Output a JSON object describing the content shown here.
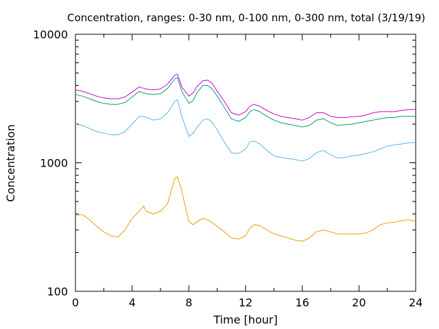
{
  "chart_data": {
    "type": "line",
    "title": "Concentration, ranges: 0-30 nm, 0-100 nm, 0-300 nm, total (3/19/19)",
    "xlabel": "Time [hour]",
    "ylabel": "Concentration",
    "xlim": [
      0,
      24
    ],
    "ylim": [
      100,
      10000
    ],
    "yscale": "log",
    "grid": false,
    "legend": "none",
    "x_ticks": [
      "0",
      "4",
      "8",
      "12",
      "16",
      "20",
      "24"
    ],
    "y_ticks": [
      "100",
      "1000",
      "10000"
    ],
    "x": [
      0,
      0.5,
      1,
      1.5,
      2,
      2.5,
      3,
      3.5,
      4,
      4.5,
      4.8,
      5,
      5.5,
      6,
      6.5,
      7,
      7.2,
      7.5,
      8,
      8.3,
      8.6,
      9,
      9.3,
      9.6,
      10,
      10.5,
      11,
      11.5,
      12,
      12.3,
      12.6,
      13,
      13.5,
      14,
      14.5,
      15,
      15.5,
      16,
      16.5,
      17,
      17.5,
      18,
      18.5,
      19,
      19.5,
      20,
      20.5,
      21,
      21.5,
      22,
      22.5,
      23,
      23.5,
      24
    ],
    "series": [
      {
        "color": "#cc00cc",
        "values": [
          3700,
          3600,
          3450,
          3300,
          3200,
          3150,
          3150,
          3250,
          3550,
          3900,
          3800,
          3750,
          3700,
          3750,
          4100,
          4800,
          4900,
          3900,
          3300,
          3500,
          3950,
          4350,
          4400,
          4200,
          3600,
          3000,
          2450,
          2350,
          2500,
          2750,
          2850,
          2750,
          2550,
          2400,
          2300,
          2250,
          2200,
          2150,
          2250,
          2450,
          2450,
          2300,
          2250,
          2250,
          2280,
          2300,
          2350,
          2450,
          2500,
          2500,
          2500,
          2550,
          2600,
          2600
        ]
      },
      {
        "color": "#009e73",
        "values": [
          3400,
          3300,
          3150,
          3000,
          2900,
          2850,
          2850,
          2950,
          3250,
          3600,
          3500,
          3450,
          3400,
          3450,
          3800,
          4500,
          4600,
          3600,
          2900,
          3050,
          3550,
          4000,
          4000,
          3800,
          3300,
          2700,
          2200,
          2100,
          2250,
          2500,
          2600,
          2500,
          2300,
          2150,
          2050,
          2000,
          1950,
          1900,
          1950,
          2150,
          2200,
          2050,
          1950,
          1980,
          2000,
          2050,
          2100,
          2150,
          2200,
          2250,
          2250,
          2300,
          2300,
          2300
        ]
      },
      {
        "color": "#56b4e9",
        "values": [
          2000,
          1950,
          1850,
          1750,
          1700,
          1650,
          1650,
          1750,
          2000,
          2300,
          2300,
          2250,
          2150,
          2200,
          2450,
          3000,
          3100,
          2300,
          1600,
          1700,
          1900,
          2150,
          2200,
          2100,
          1800,
          1450,
          1200,
          1180,
          1280,
          1450,
          1480,
          1400,
          1250,
          1130,
          1100,
          1080,
          1060,
          1030,
          1080,
          1200,
          1250,
          1150,
          1090,
          1100,
          1130,
          1150,
          1180,
          1220,
          1280,
          1350,
          1380,
          1400,
          1430,
          1440
        ]
      },
      {
        "color": "#e69f00",
        "values": [
          390,
          395,
          360,
          320,
          290,
          270,
          265,
          300,
          370,
          420,
          460,
          420,
          400,
          420,
          480,
          750,
          780,
          600,
          350,
          330,
          350,
          370,
          360,
          345,
          320,
          290,
          260,
          255,
          270,
          310,
          330,
          325,
          300,
          280,
          270,
          260,
          250,
          245,
          260,
          290,
          300,
          290,
          280,
          280,
          280,
          280,
          285,
          300,
          330,
          340,
          345,
          355,
          360,
          350
        ]
      }
    ]
  }
}
